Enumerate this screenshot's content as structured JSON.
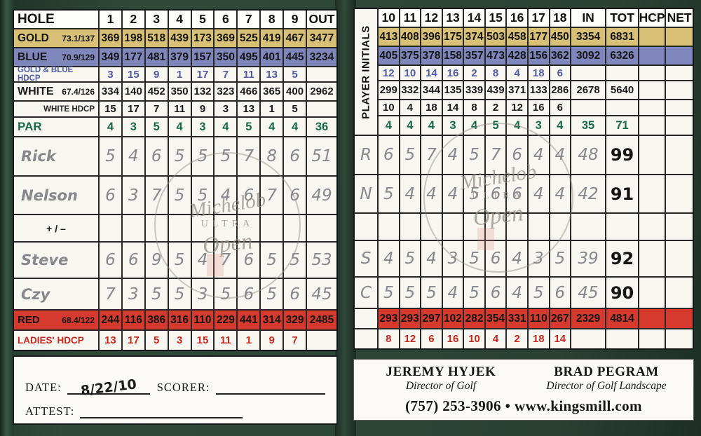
{
  "watermark": {
    "script": "Michelob",
    "caps": "ULTRA",
    "open": "Open"
  },
  "left_panel": {
    "rows": [
      {
        "key": "hole",
        "label": "HOLE",
        "sub": "",
        "cells": [
          "1",
          "2",
          "3",
          "4",
          "5",
          "6",
          "7",
          "8",
          "9"
        ],
        "total": "OUT"
      },
      {
        "key": "gold",
        "label": "GOLD",
        "sub": "73.1/137",
        "cells": [
          "369",
          "198",
          "518",
          "439",
          "173",
          "369",
          "525",
          "419",
          "467"
        ],
        "total": "3477"
      },
      {
        "key": "blue",
        "label": "BLUE",
        "sub": "70.9/129",
        "cells": [
          "349",
          "177",
          "481",
          "379",
          "157",
          "350",
          "495",
          "401",
          "445"
        ],
        "total": "3234"
      },
      {
        "key": "gb_hdcp",
        "label": "GOLD & BLUE HDCP",
        "sub": "",
        "cells": [
          "3",
          "15",
          "9",
          "1",
          "17",
          "7",
          "11",
          "13",
          "5"
        ],
        "total": ""
      },
      {
        "key": "white",
        "label": "WHITE",
        "sub": "67.4/126",
        "cells": [
          "334",
          "140",
          "452",
          "350",
          "132",
          "323",
          "466",
          "365",
          "400"
        ],
        "total": "2962"
      },
      {
        "key": "white_hdcp",
        "label": "WHITE HDCP",
        "sub": "",
        "cells": [
          "15",
          "17",
          "7",
          "11",
          "9",
          "3",
          "13",
          "1",
          "5"
        ],
        "total": ""
      },
      {
        "key": "par",
        "label": "PAR",
        "sub": "",
        "cells": [
          "4",
          "3",
          "5",
          "4",
          "3",
          "4",
          "5",
          "4",
          "4"
        ],
        "total": "36"
      },
      {
        "key": "player1",
        "label": "Rick",
        "hand": true,
        "sub": "",
        "cells": [
          "5",
          "4",
          "6",
          "5",
          "5",
          "5",
          "7",
          "8",
          "6"
        ],
        "total": "51"
      },
      {
        "key": "player2",
        "label": "Nelson",
        "hand": true,
        "sub": "",
        "cells": [
          "6",
          "3",
          "7",
          "5",
          "5",
          "4",
          "6",
          "7",
          "6"
        ],
        "total": "49"
      },
      {
        "key": "plusminus",
        "label": "+ / –",
        "sub": "",
        "cells": [
          "",
          "",
          "",
          "",
          "",
          "",
          "",
          "",
          ""
        ],
        "total": ""
      },
      {
        "key": "player3",
        "label": "Steve",
        "hand": true,
        "sub": "",
        "cells": [
          "6",
          "6",
          "9",
          "5",
          "4",
          "7",
          "6",
          "5",
          "5"
        ],
        "total": "53"
      },
      {
        "key": "player4",
        "label": "Czy",
        "hand": true,
        "sub": "",
        "cells": [
          "7",
          "3",
          "5",
          "5",
          "3",
          "5",
          "6",
          "5",
          "6"
        ],
        "total": "45"
      },
      {
        "key": "red",
        "label": "RED",
        "sub": "68.4/122",
        "cells": [
          "244",
          "116",
          "386",
          "316",
          "110",
          "229",
          "441",
          "314",
          "329"
        ],
        "total": "2485"
      },
      {
        "key": "ladies_hdcp",
        "label": "LADIES' HDCP",
        "sub": "",
        "cells": [
          "13",
          "17",
          "5",
          "3",
          "15",
          "11",
          "1",
          "9",
          "7"
        ],
        "total": ""
      }
    ]
  },
  "right_panel": {
    "side_label": "PLAYER INITIALS",
    "rows": [
      {
        "key": "hole",
        "initial": "",
        "cells": [
          "10",
          "11",
          "12",
          "13",
          "14",
          "15",
          "16",
          "17",
          "18"
        ],
        "in": "IN",
        "tot": "TOT",
        "hcp": "HCP",
        "net": "NET"
      },
      {
        "key": "gold",
        "initial": "",
        "cells": [
          "413",
          "408",
          "396",
          "175",
          "374",
          "503",
          "458",
          "177",
          "450"
        ],
        "in": "3354",
        "tot": "6831",
        "hcp": "",
        "net": ""
      },
      {
        "key": "blue",
        "initial": "",
        "cells": [
          "405",
          "375",
          "378",
          "158",
          "357",
          "473",
          "428",
          "156",
          "362"
        ],
        "in": "3092",
        "tot": "6326",
        "hcp": "",
        "net": ""
      },
      {
        "key": "gb_hdcp",
        "initial": "",
        "cells": [
          "12",
          "10",
          "14",
          "16",
          "2",
          "8",
          "4",
          "18",
          "6"
        ],
        "in": "",
        "tot": "",
        "hcp": "",
        "net": ""
      },
      {
        "key": "white",
        "initial": "",
        "cells": [
          "299",
          "332",
          "344",
          "135",
          "339",
          "439",
          "371",
          "133",
          "286"
        ],
        "in": "2678",
        "tot": "5640",
        "hcp": "",
        "net": ""
      },
      {
        "key": "white_hdcp",
        "initial": "",
        "cells": [
          "10",
          "4",
          "18",
          "14",
          "8",
          "2",
          "12",
          "16",
          "6"
        ],
        "in": "",
        "tot": "",
        "hcp": "",
        "net": ""
      },
      {
        "key": "par",
        "initial": "",
        "cells": [
          "4",
          "4",
          "4",
          "3",
          "4",
          "5",
          "4",
          "3",
          "4"
        ],
        "in": "35",
        "tot": "71",
        "hcp": "",
        "net": ""
      },
      {
        "key": "player1",
        "initial": "R",
        "hand": true,
        "ink_total": true,
        "cells": [
          "6",
          "5",
          "7",
          "4",
          "5",
          "7",
          "6",
          "4",
          "4"
        ],
        "in": "48",
        "tot": "99",
        "hcp": "",
        "net": ""
      },
      {
        "key": "player2",
        "initial": "N",
        "hand": true,
        "ink_total": true,
        "cells": [
          "5",
          "4",
          "4",
          "4",
          "5",
          "6",
          "6",
          "4",
          "4"
        ],
        "in": "42",
        "tot": "91",
        "hcp": "",
        "net": ""
      },
      {
        "key": "plusminus",
        "initial": "",
        "cells": [
          "",
          "",
          "",
          "",
          "",
          "",
          "",
          "",
          ""
        ],
        "in": "",
        "tot": "",
        "hcp": "",
        "net": ""
      },
      {
        "key": "player3",
        "initial": "S",
        "hand": true,
        "ink_total": true,
        "cells": [
          "4",
          "5",
          "4",
          "3",
          "5",
          "6",
          "4",
          "3",
          "5"
        ],
        "in": "39",
        "tot": "92",
        "hcp": "",
        "net": ""
      },
      {
        "key": "player4",
        "initial": "C",
        "hand": true,
        "ink_total": true,
        "cells": [
          "5",
          "5",
          "5",
          "4",
          "5",
          "6",
          "4",
          "5",
          "6"
        ],
        "in": "45",
        "tot": "90",
        "hcp": "",
        "net": ""
      },
      {
        "key": "red",
        "initial": "",
        "cells": [
          "293",
          "293",
          "297",
          "102",
          "282",
          "354",
          "331",
          "110",
          "267"
        ],
        "in": "2329",
        "tot": "4814",
        "hcp": "",
        "net": ""
      },
      {
        "key": "ladies_hdcp",
        "initial": "",
        "cells": [
          "8",
          "12",
          "6",
          "16",
          "10",
          "4",
          "2",
          "18",
          "14"
        ],
        "in": "",
        "tot": "",
        "hcp": "",
        "net": ""
      }
    ]
  },
  "footer_left": {
    "date_label": "DATE:",
    "date_value": "8/22/10",
    "scorer_label": "SCORER:",
    "attest_label": "ATTEST:"
  },
  "footer_right": {
    "name1": "JEREMY HYJEK",
    "title1": "Director of Golf",
    "name2": "BRAD PEGRAM",
    "title2": "Director of Golf Landscape",
    "phone": "(757) 253-3906",
    "bullet": "•",
    "website": "www.kingsmill.com"
  },
  "colors": {
    "gold_tee": "#d9c077",
    "blue_tee": "#7e86bb",
    "red_tee": "#d6392d",
    "par_green": "#17694a",
    "hdcp_blue": "#4f5ba5",
    "ladies_red": "#c8271d",
    "card_background_green": "#2c4537"
  }
}
